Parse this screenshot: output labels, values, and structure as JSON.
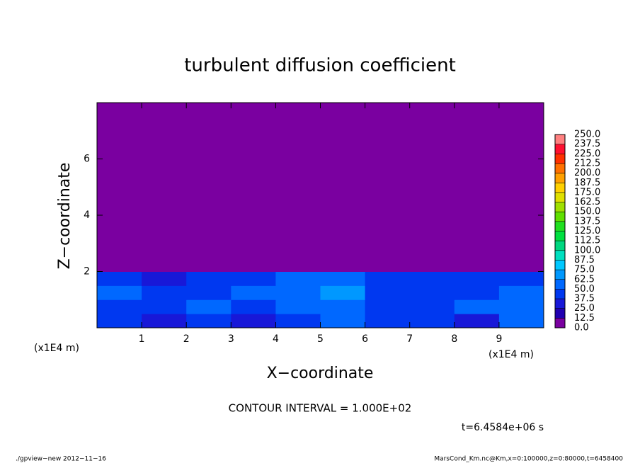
{
  "chart_data": {
    "type": "heatmap",
    "title": "turbulent diffusion coefficient",
    "xlabel": "X−coordinate",
    "ylabel": "Z−coordinate",
    "x_unit": "(x1E4 m)",
    "y_unit": "(x1E4 m)",
    "xlim": [
      0,
      10
    ],
    "ylim": [
      0,
      8
    ],
    "xticks": [
      1,
      2,
      3,
      4,
      5,
      6,
      7,
      8,
      9
    ],
    "yticks": [
      2,
      4,
      6
    ],
    "x_edges": [
      0,
      1,
      2,
      3,
      4,
      5,
      6,
      7,
      8,
      9,
      10
    ],
    "y_edges": [
      0,
      0.5,
      1,
      1.5,
      2,
      8
    ],
    "z": [
      [
        40,
        35,
        45,
        35,
        40,
        50,
        40,
        45,
        35,
        50
      ],
      [
        45,
        40,
        50,
        45,
        55,
        60,
        45,
        40,
        55,
        60
      ],
      [
        50,
        45,
        40,
        50,
        60,
        65,
        45,
        40,
        45,
        50
      ],
      [
        40,
        35,
        45,
        40,
        55,
        50,
        45,
        40,
        45,
        40
      ],
      [
        0,
        0,
        0,
        0,
        0,
        0,
        0,
        0,
        0,
        0
      ]
    ],
    "levels": [
      {
        "value": 0,
        "label": "0.0"
      },
      12.5,
      {
        "value": 25,
        "label": "25.0"
      },
      37.5,
      {
        "value": 50,
        "label": "50.0"
      },
      62.5,
      {
        "value": 75,
        "label": "75.0"
      },
      87.5,
      {
        "value": 100,
        "label": "100.0"
      },
      112.5,
      {
        "value": 125,
        "label": "125.0"
      },
      137.5,
      {
        "value": 150,
        "label": "150.0"
      },
      162.5,
      {
        "value": 175,
        "label": "175.0"
      },
      187.5,
      {
        "value": 200,
        "label": "200.0"
      },
      212.5,
      {
        "value": 225,
        "label": "225.0"
      },
      237.5,
      {
        "value": 250,
        "label": "250.0"
      }
    ],
    "colors": [
      "#7a00a0",
      "#2000b0",
      "#1818d8",
      "#0038f0",
      "#0068ff",
      "#0098ff",
      "#00c8ff",
      "#00e0c0",
      "#00d880",
      "#00e040",
      "#20e020",
      "#60e000",
      "#a0e000",
      "#e0e000",
      "#ffd000",
      "#ffa000",
      "#ff7000",
      "#ff3000",
      "#ff1030",
      "#ff8080"
    ],
    "contour_interval": "CONTOUR INTERVAL = 1.000E+02",
    "time_label": "t=6.4584e+06 s"
  },
  "footer": {
    "left": "./gpview−new  2012−11−16",
    "right": "MarsCond_Km.nc@Km,x=0:100000,z=0:80000,t=6458400"
  }
}
